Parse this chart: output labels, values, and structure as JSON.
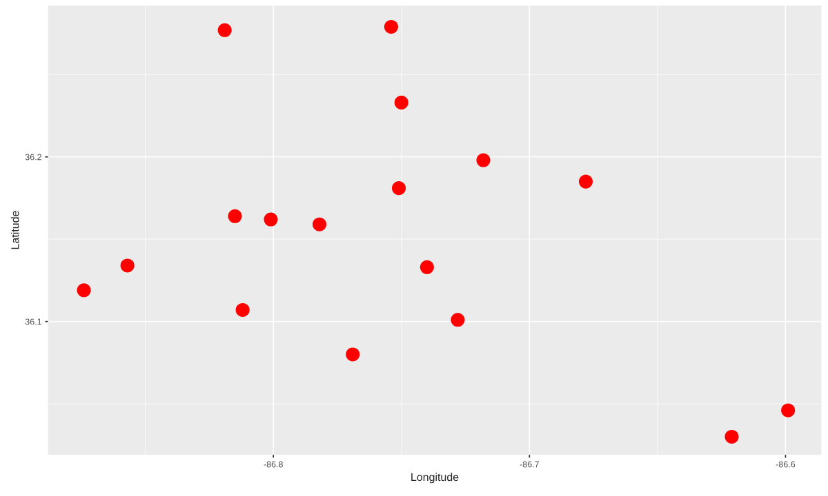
{
  "chart_data": {
    "type": "scatter",
    "xlabel": "Longitude",
    "ylabel": "Latitude",
    "x": [
      -86.819,
      -86.754,
      -86.75,
      -86.718,
      -86.678,
      -86.751,
      -86.815,
      -86.801,
      -86.782,
      -86.857,
      -86.874,
      -86.74,
      -86.812,
      -86.728,
      -86.769,
      -86.621,
      -86.599
    ],
    "series": [
      {
        "color": "#ff0000",
        "values": [
          36.277,
          36.279,
          36.233,
          36.198,
          36.185,
          36.181,
          36.164,
          36.162,
          36.159,
          36.134,
          36.119,
          36.133,
          36.107,
          36.101,
          36.08,
          36.03,
          36.046
        ]
      }
    ],
    "xlim": [
      -86.888,
      -86.586
    ],
    "ylim": [
      36.019,
      36.292
    ],
    "xticks": [
      -86.8,
      -86.7,
      -86.6
    ],
    "yticks": [
      36.1,
      36.2
    ],
    "grid": true,
    "marker": "circle",
    "legend": false
  }
}
